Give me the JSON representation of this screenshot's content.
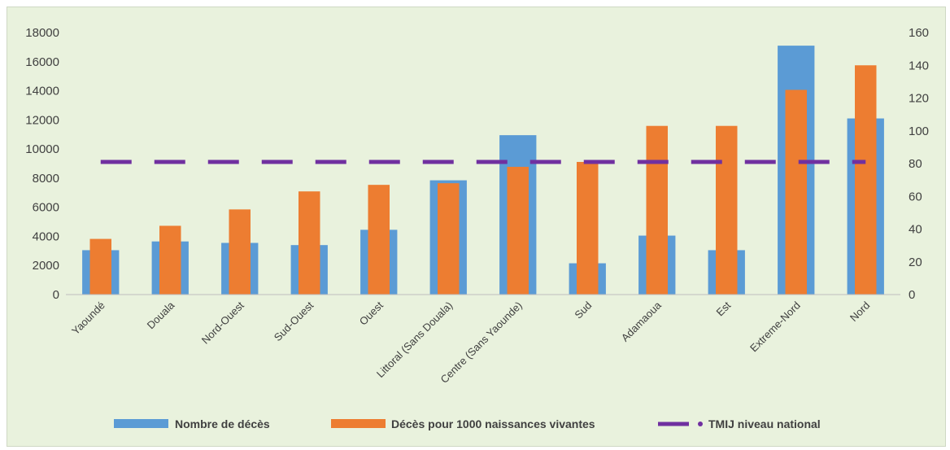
{
  "colors": {
    "background": "#e9f2dd",
    "deaths": "#5b9bd5",
    "rate": "#ed7d31",
    "national": "#7030a0",
    "axis": "#bfbfbf",
    "text": "#404040"
  },
  "chart_data": {
    "type": "bar",
    "title": "",
    "categories": [
      "Yaoundé",
      "Douala",
      "Nord-Ouest",
      "Sud-Ouest",
      "Ouest",
      "Littoral (Sans Douala)",
      "Centre (Sans Yaounde)",
      "Sud",
      "Adamaoua",
      "Est",
      "Extreme-Nord",
      "Nord"
    ],
    "series": [
      {
        "name": "Nombre de décès",
        "axis": "left",
        "color": "#5b9bd5",
        "values": [
          3050,
          3650,
          3550,
          3400,
          4450,
          7850,
          10950,
          2150,
          4050,
          3050,
          17100,
          12100
        ]
      },
      {
        "name": "Décès  pour 1000 naissances vivantes",
        "axis": "right",
        "color": "#ed7d31",
        "values": [
          34,
          42,
          52,
          63,
          67,
          68,
          78,
          81,
          103,
          103,
          125,
          140
        ]
      },
      {
        "name": "TMIJ niveau national",
        "axis": "right",
        "type": "line",
        "style": "dashed",
        "color": "#7030a0",
        "value": 81
      }
    ],
    "y_left": {
      "min": 0,
      "max": 18000,
      "ticks": [
        "0",
        "2000",
        "4000",
        "6000",
        "8000",
        "10000",
        "12000",
        "14000",
        "16000",
        "18000"
      ]
    },
    "y_right": {
      "min": 0,
      "max": 160,
      "ticks": [
        "0",
        "20",
        "40",
        "60",
        "80",
        "100",
        "120",
        "140",
        "160"
      ]
    },
    "legend_position": "bottom",
    "grid": false
  }
}
